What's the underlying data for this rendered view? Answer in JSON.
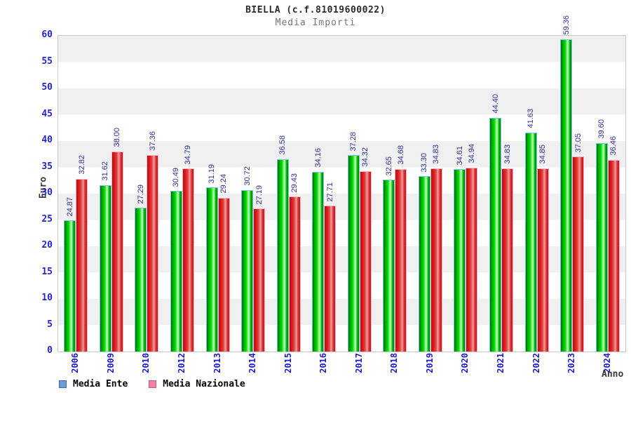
{
  "header": {
    "title": "BIELLA (c.f.81019600022)",
    "subtitle": "Media Importi"
  },
  "chart_data": {
    "type": "bar",
    "title": "BIELLA (c.f.81019600022)",
    "subtitle": "Media Importi",
    "xlabel": "Anno",
    "ylabel": "Euro",
    "ylim": [
      0,
      60
    ],
    "ytick_step": 5,
    "grid": "alternating horizontal bands every 5 units",
    "legend_position": "bottom-left",
    "categories": [
      "2006",
      "2009",
      "2010",
      "2012",
      "2013",
      "2014",
      "2015",
      "2016",
      "2017",
      "2018",
      "2019",
      "2020",
      "2021",
      "2022",
      "2023",
      "2024"
    ],
    "series": [
      {
        "name": "Media Ente",
        "bar_color": "#00cc00",
        "bar_border": "#7cc4ee",
        "legend_fill": "#6b9fd4",
        "legend_border": "#3a6ea8",
        "values": [
          24.87,
          31.62,
          27.29,
          30.49,
          31.19,
          30.72,
          36.58,
          34.16,
          37.28,
          32.65,
          33.3,
          34.61,
          44.4,
          41.63,
          59.36,
          39.6
        ]
      },
      {
        "name": "Media Nazionale",
        "bar_color": "#e62222",
        "bar_border": "#ffaec8",
        "legend_fill": "#f080a4",
        "legend_border": "#c05880",
        "values": [
          32.82,
          38.0,
          37.36,
          34.79,
          29.24,
          27.19,
          29.43,
          27.71,
          34.32,
          34.68,
          34.83,
          34.94,
          34.83,
          34.85,
          37.05,
          36.46
        ]
      }
    ]
  },
  "colors": {
    "ytick_text": "#2424cc",
    "xtick_text": "#1a1acc",
    "value_label_text": "#2e2e99",
    "band_gray": "#f0f0f0",
    "band_white": "#ffffff",
    "plot_border": "#c8c8c8",
    "title_text": "#2b2b2b",
    "subtitle_text": "#747474"
  }
}
